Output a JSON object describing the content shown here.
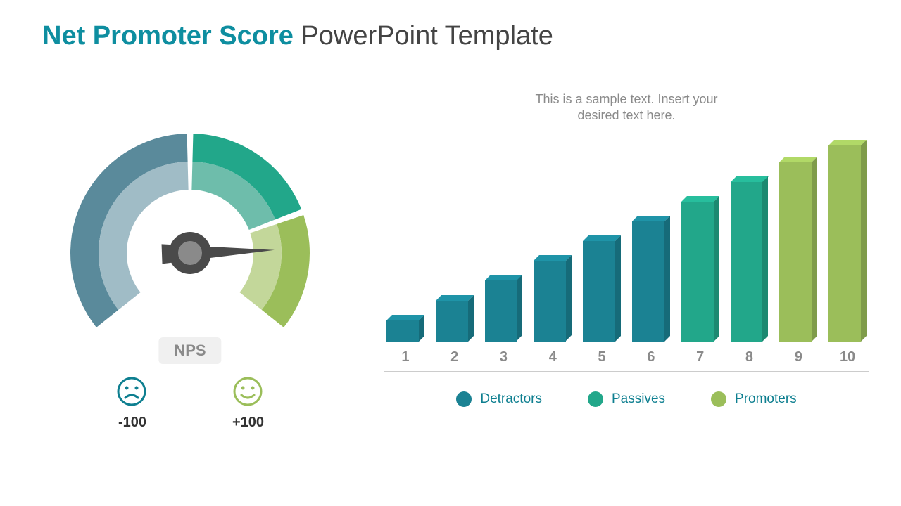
{
  "title": {
    "accent": "Net Promoter Score",
    "rest": " PowerPoint Template",
    "accent_color": "#0e8ea0",
    "rest_color": "#444444",
    "fontsize": 38
  },
  "gauge": {
    "type": "gauge",
    "center_label": "NPS",
    "min_label": "-100",
    "max_label": "+100",
    "needle_angle_deg": 82,
    "segments": [
      {
        "name": "detractors",
        "start_deg": -40,
        "end_deg": 90,
        "outer_color": "#5a8a9b",
        "inner_color": "#a0bcc6"
      },
      {
        "name": "passives",
        "start_deg": 90,
        "end_deg": 160,
        "outer_color": "#22a78a",
        "inner_color": "#6ebdab"
      },
      {
        "name": "promoters",
        "start_deg": 160,
        "end_deg": 220,
        "outer_color": "#9bbe5a",
        "inner_color": "#c3d79a"
      }
    ],
    "gap_deg": 3,
    "outer_radius": 170,
    "mid_radius": 130,
    "inner_radius": 90,
    "needle_color": "#4a4a4a",
    "hub_outer_color": "#4a4a4a",
    "hub_inner_color": "#8a8a8a",
    "sad_face_color": "#0e7f90",
    "happy_face_color": "#9bbe5a",
    "badge_bg": "#f0f0f0",
    "badge_fg": "#8a8a8a"
  },
  "bar_chart": {
    "type": "bar",
    "caption": "This is a sample text. Insert your\ndesired text here.",
    "caption_color": "#8a8a8a",
    "caption_fontsize": 18,
    "categories": [
      "1",
      "2",
      "3",
      "4",
      "5",
      "6",
      "7",
      "8",
      "9",
      "10"
    ],
    "values": [
      30,
      58,
      86,
      114,
      142,
      170,
      198,
      226,
      254,
      278
    ],
    "value_max": 278,
    "bar_colors": [
      "#1b8293",
      "#1b8293",
      "#1b8293",
      "#1b8293",
      "#1b8293",
      "#1b8293",
      "#22a78a",
      "#22a78a",
      "#9bbe5a",
      "#9bbe5a"
    ],
    "axis_color": "#cccccc",
    "tick_color": "#8a8a8a",
    "tick_fontsize": 20
  },
  "legend": [
    {
      "label": "Detractors",
      "color": "#1b8293"
    },
    {
      "label": "Passives",
      "color": "#22a78a"
    },
    {
      "label": "Promoters",
      "color": "#9bbe5a"
    }
  ]
}
